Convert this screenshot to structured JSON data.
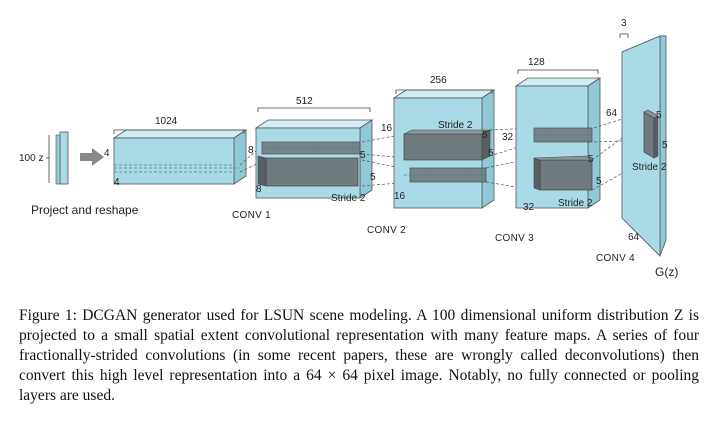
{
  "diagram": {
    "input": {
      "label": "100 z",
      "arrow_label": "Project and reshape"
    },
    "stage0": {
      "width_label": "1024",
      "h": "4",
      "w": "4"
    },
    "conv1": {
      "name": "CONV 1",
      "width_label": "512",
      "h": "8",
      "w": "8",
      "k1": "5",
      "k2": "5",
      "stride": "Stride 2"
    },
    "conv2": {
      "name": "CONV 2",
      "width_label": "256",
      "h": "16",
      "w": "16",
      "k1": "5",
      "k2": "5",
      "stride": "Stride 2"
    },
    "conv3": {
      "name": "CONV 3",
      "width_label": "128",
      "h": "32",
      "w": "32",
      "k1": "5",
      "k2": "5",
      "stride": "Stride 2"
    },
    "conv4": {
      "name": "CONV 4",
      "width_label": "3",
      "h": "64",
      "w": "64",
      "k1": "5",
      "k2": "5",
      "stride": "Stride 2"
    },
    "output": {
      "label": "G(z)"
    }
  },
  "caption": {
    "text": "Figure 1: DCGAN generator used for LSUN scene modeling. A 100 dimensional uniform distribution Z is projected to a small spatial extent convolutional representation with many feature maps. A series of four fractionally-strided convolutions (in some recent papers, these are wrongly called deconvolutions) then convert this high level representation into a 64 × 64 pixel image. Notably, no fully connected or pooling layers are used."
  },
  "colors": {
    "block_front": "#a9dbe6",
    "block_top": "#d2eef4",
    "block_side": "#8fc9d6",
    "kernel": "#6f7b7e",
    "outline": "#555555"
  }
}
